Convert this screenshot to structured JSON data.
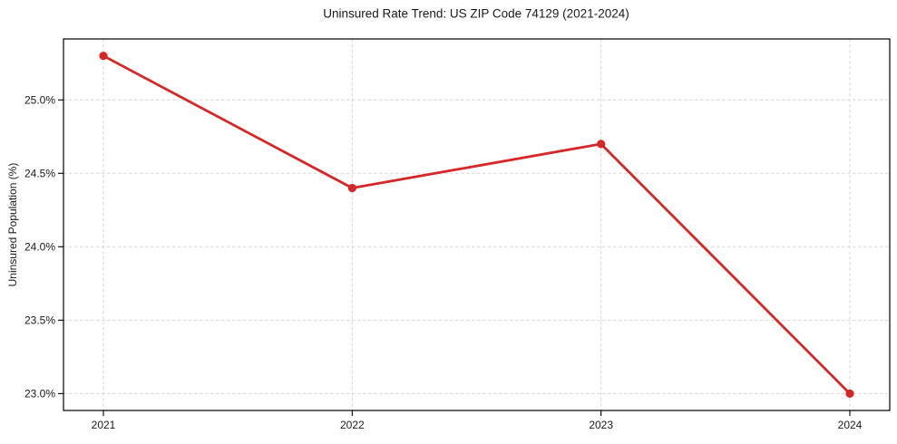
{
  "chart_data": {
    "type": "line",
    "title": "Uninsured Rate Trend: US ZIP Code 74129 (2021-2024)",
    "xlabel": "",
    "ylabel": "Uninsured Population (%)",
    "x": [
      2021,
      2022,
      2023,
      2024
    ],
    "values": [
      25.3,
      24.4,
      24.7,
      23.0
    ],
    "x_tick_labels": [
      "2021",
      "2022",
      "2023",
      "2024"
    ],
    "y_ticks": [
      23.0,
      23.5,
      24.0,
      24.5,
      25.0
    ],
    "y_tick_labels": [
      "23.0%",
      "23.5%",
      "24.0%",
      "24.5%",
      "25.0%"
    ],
    "ylim": [
      22.885,
      25.415
    ],
    "grid": true,
    "grid_style": "dashed",
    "legend_position": "none",
    "line_color": "#d62728",
    "marker": "circle",
    "grid_color": "#d7d7d7",
    "axis_color": "#000000"
  }
}
